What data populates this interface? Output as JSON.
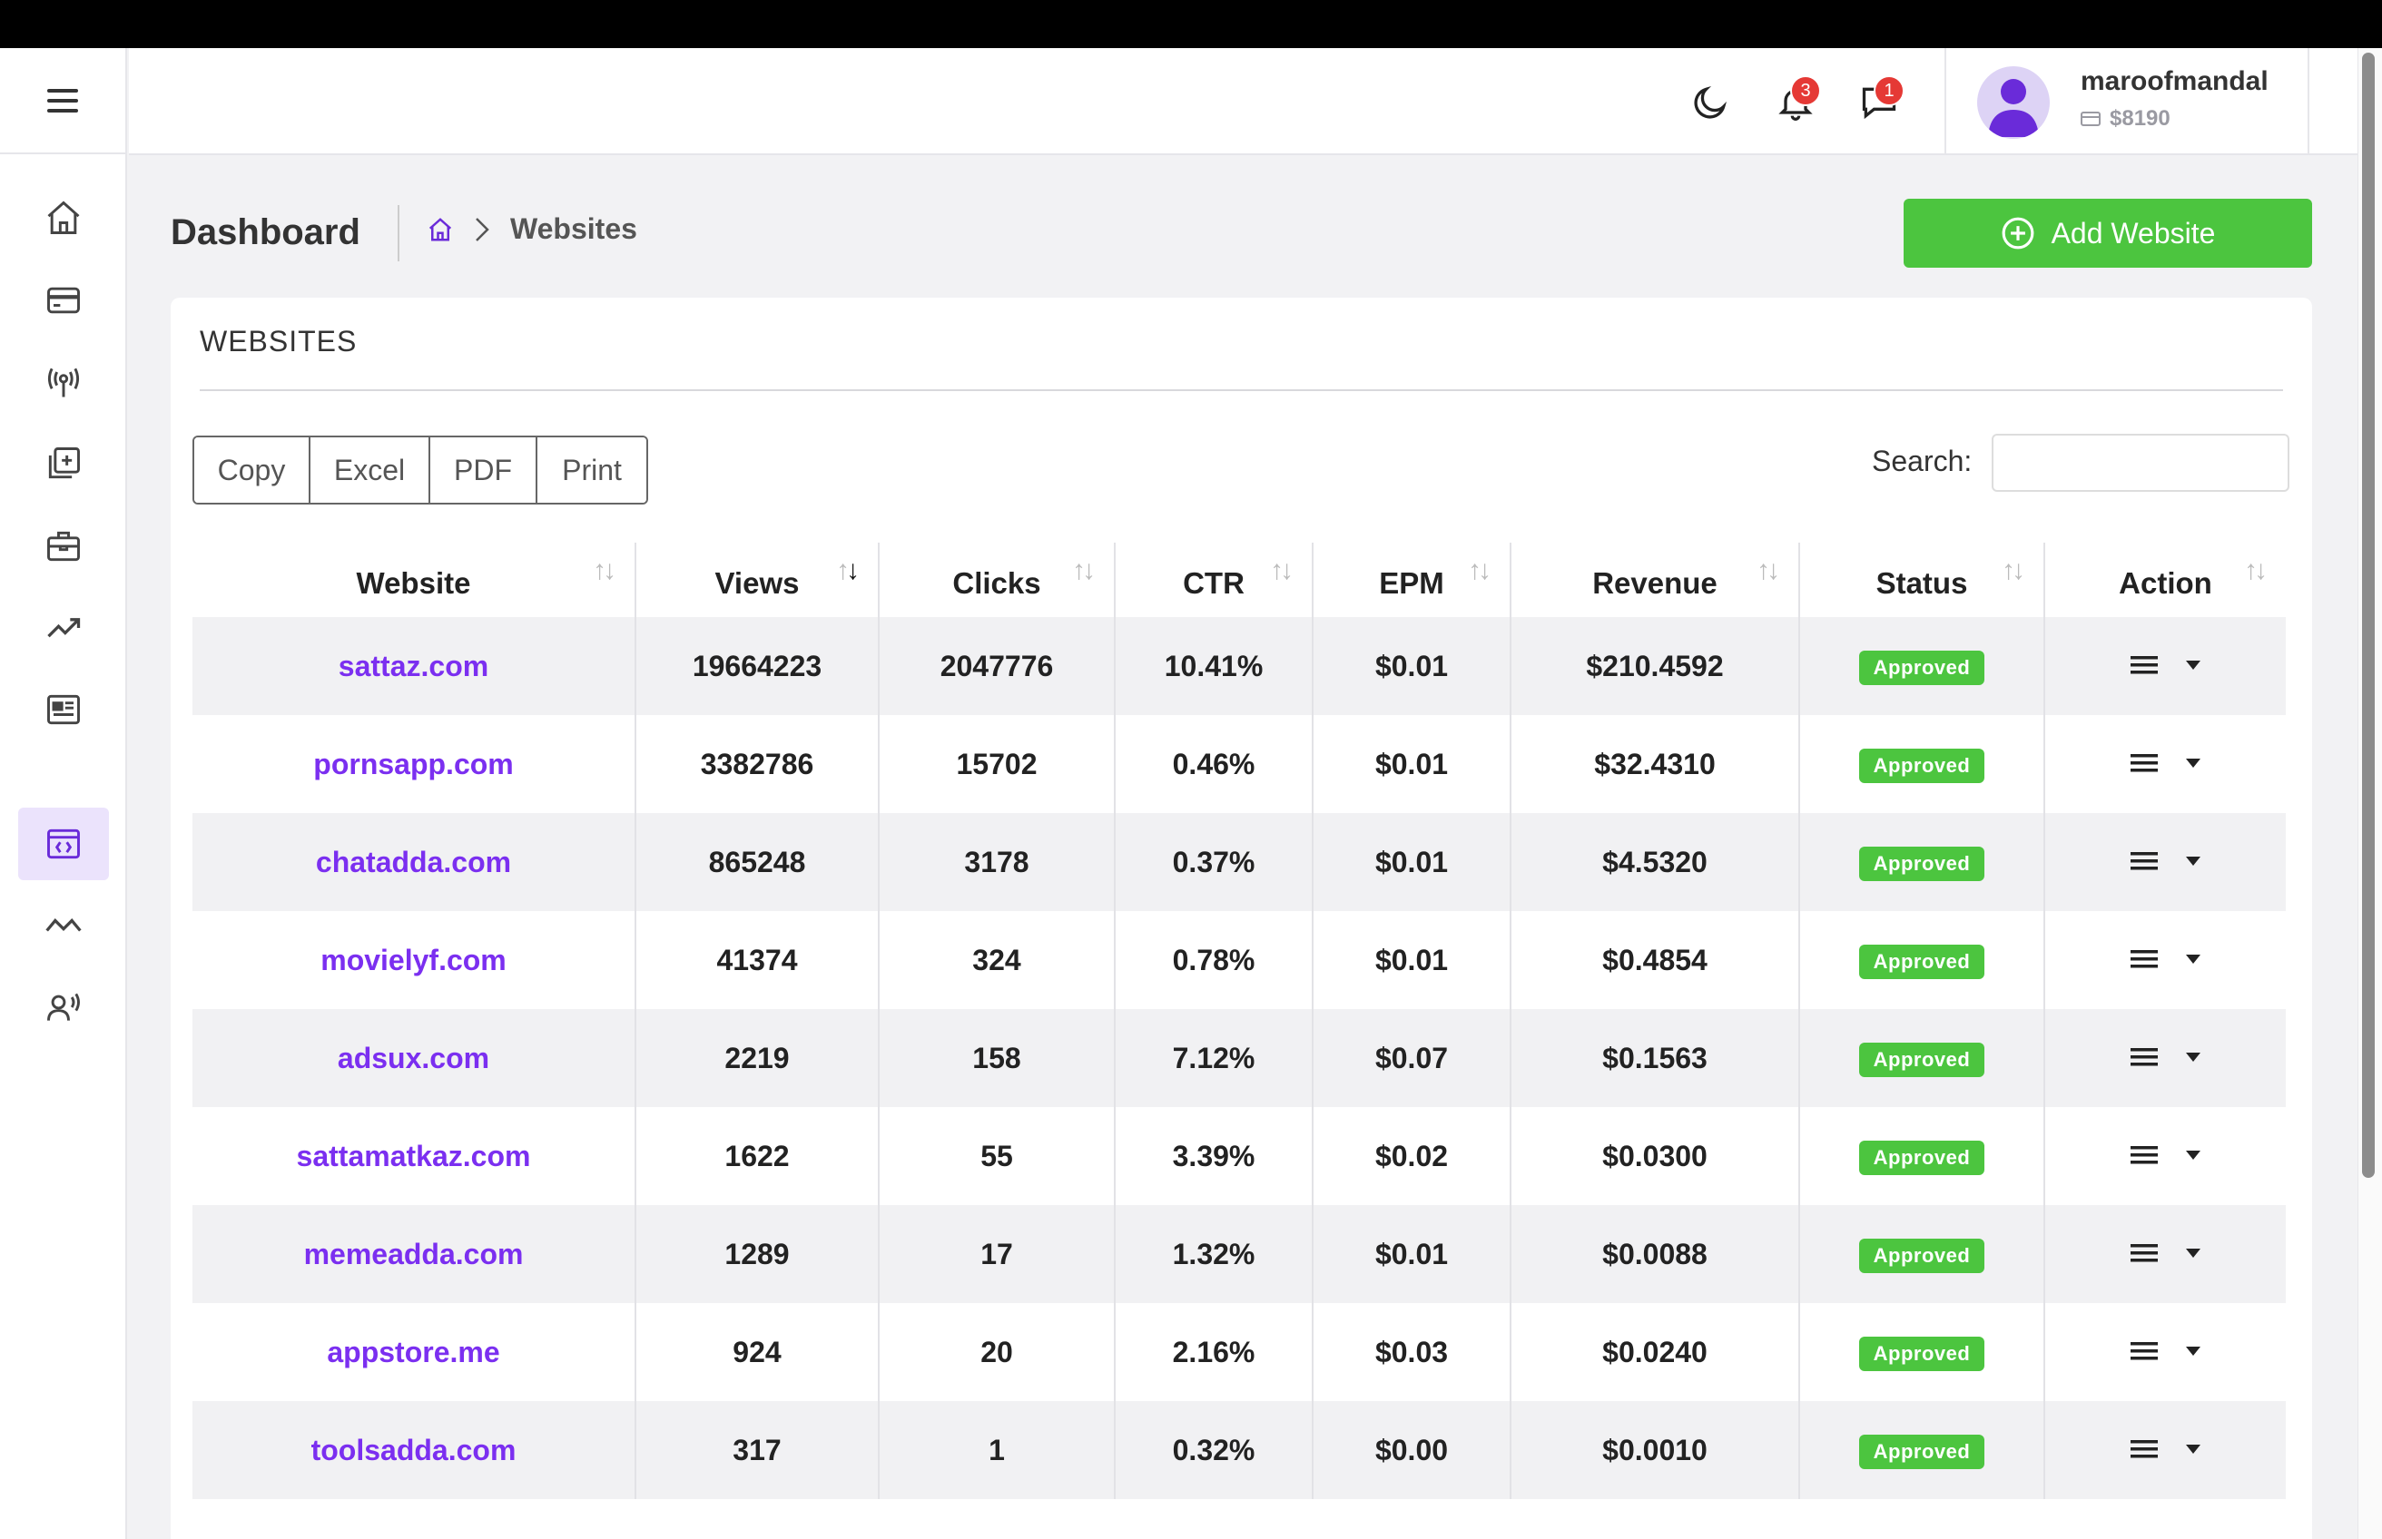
{
  "header": {
    "notifications_count": "3",
    "messages_count": "1",
    "username": "maroofmandal",
    "balance": "$8190"
  },
  "page": {
    "title": "Dashboard",
    "breadcrumb_current": "Websites",
    "add_button": "Add Website"
  },
  "card": {
    "title": "WEBSITES",
    "export_buttons": [
      "Copy",
      "Excel",
      "PDF",
      "Print"
    ],
    "search_label": "Search:",
    "search_value": ""
  },
  "table": {
    "columns": [
      "Website",
      "Views",
      "Clicks",
      "CTR",
      "EPM",
      "Revenue",
      "Status",
      "Action"
    ],
    "rows": [
      {
        "website": "sattaz.com",
        "views": "19664223",
        "clicks": "2047776",
        "ctr": "10.41%",
        "epm": "$0.01",
        "revenue": "$210.4592",
        "status": "Approved"
      },
      {
        "website": "pornsapp.com",
        "views": "3382786",
        "clicks": "15702",
        "ctr": "0.46%",
        "epm": "$0.01",
        "revenue": "$32.4310",
        "status": "Approved"
      },
      {
        "website": "chatadda.com",
        "views": "865248",
        "clicks": "3178",
        "ctr": "0.37%",
        "epm": "$0.01",
        "revenue": "$4.5320",
        "status": "Approved"
      },
      {
        "website": "movielyf.com",
        "views": "41374",
        "clicks": "324",
        "ctr": "0.78%",
        "epm": "$0.01",
        "revenue": "$0.4854",
        "status": "Approved"
      },
      {
        "website": "adsux.com",
        "views": "2219",
        "clicks": "158",
        "ctr": "7.12%",
        "epm": "$0.07",
        "revenue": "$0.1563",
        "status": "Approved"
      },
      {
        "website": "sattamatkaz.com",
        "views": "1622",
        "clicks": "55",
        "ctr": "3.39%",
        "epm": "$0.02",
        "revenue": "$0.0300",
        "status": "Approved"
      },
      {
        "website": "memeadda.com",
        "views": "1289",
        "clicks": "17",
        "ctr": "1.32%",
        "epm": "$0.01",
        "revenue": "$0.0088",
        "status": "Approved"
      },
      {
        "website": "appstore.me",
        "views": "924",
        "clicks": "20",
        "ctr": "2.16%",
        "epm": "$0.03",
        "revenue": "$0.0240",
        "status": "Approved"
      },
      {
        "website": "toolsadda.com",
        "views": "317",
        "clicks": "1",
        "ctr": "0.32%",
        "epm": "$0.00",
        "revenue": "$0.0010",
        "status": "Approved"
      }
    ]
  },
  "sidebar": {
    "items": [
      "home-icon",
      "credit-card-icon",
      "broadcast-icon",
      "add-document-icon",
      "briefcase-icon",
      "trending-up-icon",
      "newspaper-icon",
      "code-window-icon",
      "activity-icon",
      "users-voice-icon"
    ],
    "active_index": 7
  },
  "colors": {
    "accent": "#7b2ff0",
    "success": "#4cc53f",
    "badge": "#e53935"
  }
}
